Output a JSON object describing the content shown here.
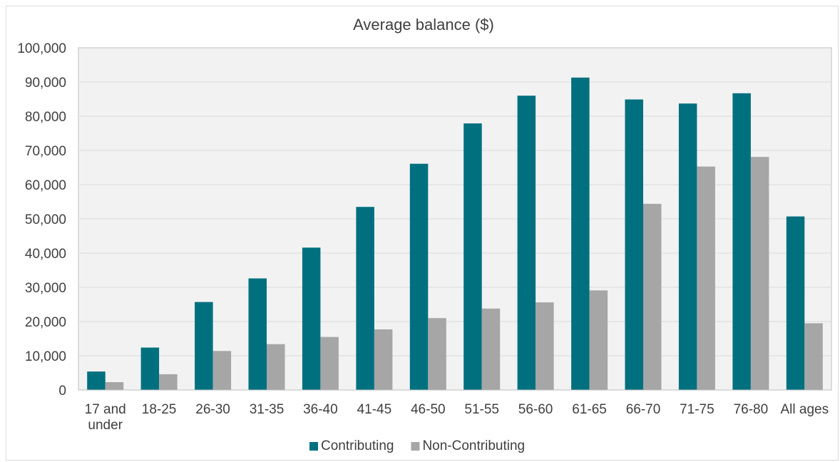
{
  "chart_data": {
    "type": "bar",
    "title": "Average balance ($)",
    "categories": [
      [
        "17 and",
        "under"
      ],
      [
        "18-25"
      ],
      [
        "26-30"
      ],
      [
        "31-35"
      ],
      [
        "36-40"
      ],
      [
        "41-45"
      ],
      [
        "46-50"
      ],
      [
        "51-55"
      ],
      [
        "56-60"
      ],
      [
        "61-65"
      ],
      [
        "66-70"
      ],
      [
        "71-75"
      ],
      [
        "76-80"
      ],
      [
        "All ages"
      ]
    ],
    "series": [
      {
        "name": "Contributing",
        "color": "#00707f",
        "values": [
          5400,
          12400,
          25700,
          32600,
          41600,
          53500,
          66100,
          77900,
          86000,
          91300,
          84900,
          83700,
          86700,
          50700
        ]
      },
      {
        "name": "Non-Contributing",
        "color": "#a6a6a6",
        "values": [
          2300,
          4600,
          11400,
          13400,
          15500,
          17700,
          21000,
          23800,
          25600,
          29100,
          54400,
          65300,
          68100,
          19500
        ]
      }
    ],
    "ylim": [
      0,
      100000
    ],
    "yticks": [
      0,
      10000,
      20000,
      30000,
      40000,
      50000,
      60000,
      70000,
      80000,
      90000,
      100000
    ],
    "ytick_labels": [
      "0",
      "10,000",
      "20,000",
      "30,000",
      "40,000",
      "50,000",
      "60,000",
      "70,000",
      "80,000",
      "90,000",
      "100,000"
    ],
    "grid": true,
    "plot_background": "#f2f2f2",
    "legend_position": "bottom"
  }
}
